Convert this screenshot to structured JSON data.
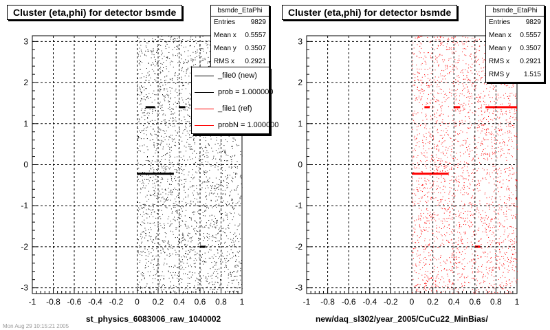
{
  "colors": {
    "new": "#000000",
    "ref": "#ff0000",
    "grid": "#000000",
    "background": "#ffffff"
  },
  "footer": {
    "text": "Mon Aug 29 10:15:21 2005"
  },
  "chart_data": [
    {
      "type": "scatter",
      "title": "Cluster (eta,phi) for detector bsmde",
      "xlabel": "st_physics_6083006_raw_1040002",
      "ylabel": "",
      "xlim": [
        -1,
        1
      ],
      "ylim": [
        -3.14,
        3.14
      ],
      "xticks": [
        "-1",
        "-0.8",
        "-0.6",
        "-0.4",
        "-0.2",
        "0",
        "0.2",
        "0.4",
        "0.6",
        "0.8",
        "1"
      ],
      "yticks": [
        "-3",
        "-2",
        "-1",
        "0",
        "1",
        "2",
        "3"
      ],
      "grid": true,
      "marker_color": "#000000",
      "stats": {
        "name": "bsmde_EtaPhi",
        "rows": [
          {
            "label": "Entries",
            "value": "9829"
          },
          {
            "label": "Mean x",
            "value": "0.5557"
          },
          {
            "label": "Mean y",
            "value": "0.3507"
          },
          {
            "label": "RMS x",
            "value": "0.2921"
          }
        ]
      },
      "legend": {
        "position": "top-right",
        "entries": [
          {
            "label": "_file0 (new)",
            "color": "#000000"
          },
          {
            "label": "prob = 1.000000",
            "color": "#000000"
          },
          {
            "label": "_file1 (ref)",
            "color": "#ff0000"
          },
          {
            "label": "probN = 1.000000",
            "color": "#ff0000"
          }
        ]
      },
      "distribution": {
        "x_range": [
          0,
          1
        ],
        "y_range": [
          -3.14,
          3.14
        ],
        "hot_spots": [
          {
            "x": [
              0.0,
              0.35
            ],
            "y": -0.22
          },
          {
            "x": [
              0.08,
              0.17
            ],
            "y": 1.4
          },
          {
            "x": [
              0.4,
              0.46
            ],
            "y": 1.4
          },
          {
            "x": [
              0.6,
              0.65
            ],
            "y": -2.0
          }
        ]
      }
    },
    {
      "type": "scatter",
      "title": "Cluster (eta,phi) for detector bsmde",
      "xlabel": "new/daq_sl302/year_2005/CuCu22_MinBias/",
      "ylabel": "",
      "xlim": [
        -1,
        1
      ],
      "ylim": [
        -3.14,
        3.14
      ],
      "xticks": [
        "-1",
        "-0.8",
        "-0.6",
        "-0.4",
        "-0.2",
        "0",
        "0.2",
        "0.4",
        "0.6",
        "0.8",
        "1"
      ],
      "yticks": [
        "-3",
        "-2",
        "-1",
        "0",
        "1",
        "2",
        "3"
      ],
      "grid": true,
      "marker_color": "#ff0000",
      "stats": {
        "name": "bsmde_EtaPhi",
        "rows": [
          {
            "label": "Entries",
            "value": "9829"
          },
          {
            "label": "Mean x",
            "value": "0.5557"
          },
          {
            "label": "Mean y",
            "value": "0.3507"
          },
          {
            "label": "RMS x",
            "value": "0.2921"
          },
          {
            "label": "RMS y",
            "value": "1.515"
          }
        ]
      },
      "distribution": {
        "x_range": [
          0,
          1
        ],
        "y_range": [
          -3.14,
          3.14
        ],
        "hot_spots": [
          {
            "x": [
              0.0,
              0.35
            ],
            "y": -0.22
          },
          {
            "x": [
              0.12,
              0.17
            ],
            "y": 1.4
          },
          {
            "x": [
              0.4,
              0.46
            ],
            "y": 1.4
          },
          {
            "x": [
              0.7,
              1.0
            ],
            "y": 1.4
          },
          {
            "x": [
              0.6,
              0.65
            ],
            "y": -2.0
          }
        ]
      }
    }
  ]
}
